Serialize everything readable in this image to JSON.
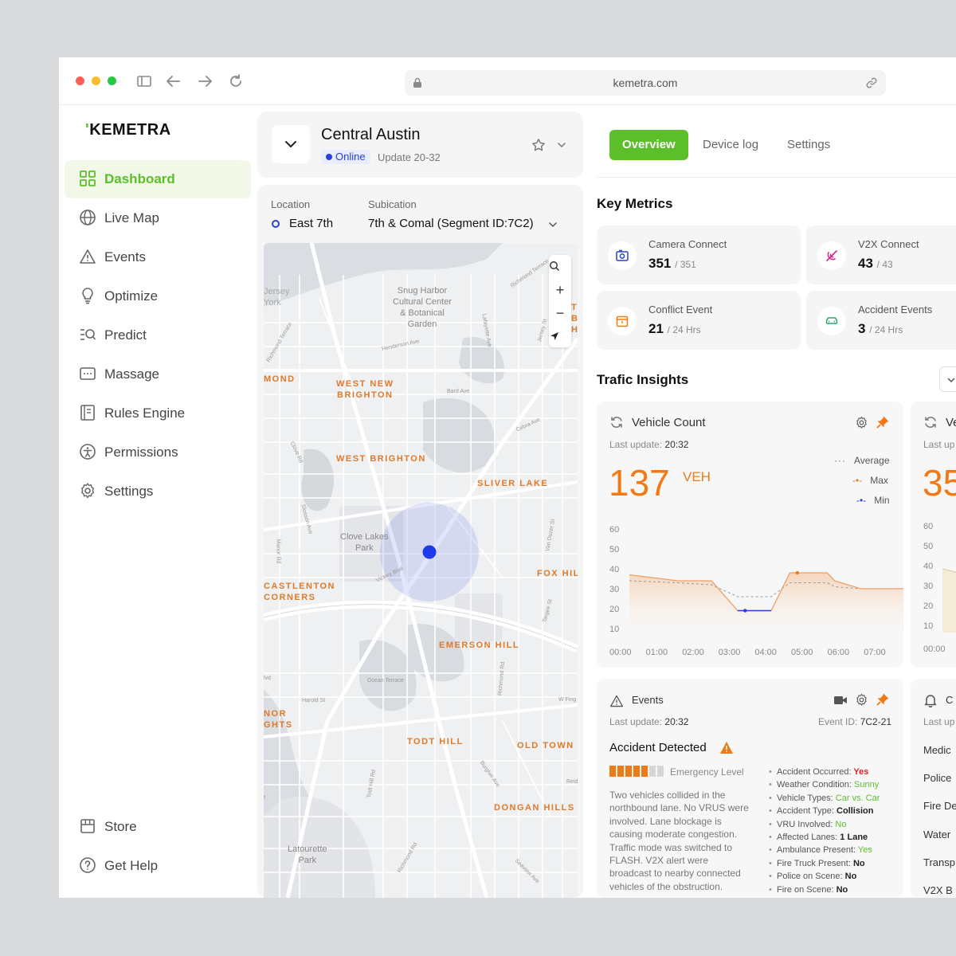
{
  "browser": {
    "url": "kemetra.com",
    "traffic_light_colors": [
      "#ff5f57",
      "#febc2e",
      "#28c840"
    ]
  },
  "brand": {
    "name": "KEMETRA",
    "accent_color": "#5cbf2a",
    "orange_color": "#f07a17"
  },
  "sidebar": {
    "items": [
      {
        "label": "Dashboard",
        "icon": "grid-icon",
        "active": true
      },
      {
        "label": "Live Map",
        "icon": "globe-icon"
      },
      {
        "label": "Events",
        "icon": "warning-icon"
      },
      {
        "label": "Optimize",
        "icon": "lightbulb-icon"
      },
      {
        "label": "Predict",
        "icon": "list-search-icon"
      },
      {
        "label": "Massage",
        "icon": "message-icon"
      },
      {
        "label": "Rules Engine",
        "icon": "document-icon"
      },
      {
        "label": "Permissions",
        "icon": "accessibility-icon"
      },
      {
        "label": "Settings",
        "icon": "gear-icon"
      }
    ],
    "bottom_items": [
      {
        "label": "Store",
        "icon": "store-icon"
      },
      {
        "label": "Get Help",
        "icon": "help-icon"
      }
    ]
  },
  "location_card": {
    "title": "Central Austin",
    "status": "Online",
    "update": "Update 20-32"
  },
  "location_panel": {
    "location_label": "Location",
    "location_value": "East 7th",
    "sublocation_label": "Subication",
    "sublocation_value": "7th & Comal (Segment ID:7C2)"
  },
  "map": {
    "labels_gray": [
      "Snug Harbor\nCultural Center\n& Botanical\nGarden",
      "Clove Lakes\nPark",
      "Latourette\nPark",
      "Jersey\nYork",
      "Richmond Terrace",
      "Henderson Ave",
      "Bard Ave",
      "Cebra Ave",
      "Clove Rd",
      "Slosson Ave",
      "Manor Rd",
      "Victory Blvd",
      "Van Duzer St",
      "Targee St",
      "Ocean Terrace",
      "Harold St",
      "Richmond Rd",
      "Burgher Ave",
      "Todt Hill Rd",
      "Seaview Ave",
      "Lafayette Ave",
      "Jersey St",
      "Richmond Terrace",
      "W Fing",
      "Reid",
      "Richmond Rd",
      "lvd",
      "t"
    ],
    "labels_orange": [
      "WEST NEW\nBRIGHTON",
      "WEST BRIGHTON",
      "SLIVER LAKE",
      "MOND",
      "CASTLENTON\nCORNERS",
      "FOX HIL",
      "EMERSON HILL",
      "NOR\nGHTS",
      "TODT HILL",
      "OLD TOWN",
      "DONGAN HILLS",
      "T\nBI\nH"
    ],
    "controls": [
      "+",
      "−"
    ]
  },
  "tabs": {
    "items": [
      "Overview",
      "Device log",
      "Settings"
    ],
    "active": "Overview"
  },
  "key_metrics": {
    "title": "Key Metrics",
    "items": [
      {
        "label": "Camera Connect",
        "value": "351",
        "unit": "/ 351",
        "icon": "camera-icon"
      },
      {
        "label": "V2X Connect",
        "value": "43",
        "unit": "/ 43",
        "icon": "antenna-icon"
      },
      {
        "label": "Conflict Event",
        "value": "21",
        "unit": "/ 24 Hrs",
        "icon": "calendar-alert-icon"
      },
      {
        "label": "Accident Events",
        "value": "3",
        "unit": "/ 24 Hrs",
        "icon": "car-icon"
      }
    ]
  },
  "traffic_insights": {
    "title": "Trafic Insights",
    "vehicle_count": {
      "title": "Vehicle Count",
      "last_update_label": "Last update:",
      "last_update": "20:32",
      "value": "137",
      "unit": "VEH",
      "legend": [
        "Average",
        "Max",
        "Min"
      ]
    },
    "second_card": {
      "title_partial": "Ve",
      "last_update_partial": "Last up",
      "value_partial": "35",
      "y_ticks": [
        "60",
        "50",
        "40",
        "30",
        "20",
        "10"
      ],
      "x_first": "00:00"
    }
  },
  "chart_data": {
    "type": "area",
    "title": "Vehicle Count",
    "x": [
      "00:00",
      "01:00",
      "02:00",
      "03:00",
      "04:00",
      "05:00",
      "06:00",
      "07:00"
    ],
    "y_ticks": [
      "60",
      "50",
      "40",
      "30",
      "20",
      "10"
    ],
    "ylim": [
      10,
      60
    ],
    "series": [
      {
        "name": "Max",
        "points": [
          [
            0,
            37
          ],
          [
            1.3,
            34
          ],
          [
            2.2,
            34
          ],
          [
            2.9,
            19
          ],
          [
            3.8,
            19
          ],
          [
            4.3,
            38
          ],
          [
            5.3,
            38
          ],
          [
            5.5,
            34
          ],
          [
            6.2,
            30
          ],
          [
            7.4,
            30
          ]
        ]
      },
      {
        "name": "Average",
        "points": [
          [
            0,
            34
          ],
          [
            1.3,
            33
          ],
          [
            2.2,
            32
          ],
          [
            2.9,
            26
          ],
          [
            3.8,
            26
          ],
          [
            4.3,
            33
          ],
          [
            5.3,
            33
          ],
          [
            5.5,
            31
          ],
          [
            6.2,
            30
          ],
          [
            7.4,
            30
          ]
        ]
      }
    ],
    "markers": [
      {
        "name": "Max",
        "x": 4.5,
        "y": 38
      },
      {
        "name": "Min",
        "x": 3.1,
        "y": 19
      }
    ]
  },
  "events_card": {
    "title": "Events",
    "last_update_label": "Last update:",
    "last_update": "20:32",
    "event_id_label": "Event ID:",
    "event_id": "7C2-21",
    "headline": "Accident Detected",
    "emergency_label": "Emergency Level",
    "emergency_level": 5,
    "emergency_max": 7,
    "description": "Two vehicles collided in the northbound lane. No VRUS were involved. Lane blockage is causing moderate congestion. Traffic mode was switched to FLASH. V2X alert were broadcast to nearby connected vehicles of the obstruction.",
    "details": [
      {
        "label": "Accident Occurred:",
        "value": "Yes",
        "style": "vr"
      },
      {
        "label": "Weather Condition:",
        "value": "Sunny",
        "style": "vg"
      },
      {
        "label": "Vehicle Types:",
        "value": "Car vs. Car",
        "style": "vg"
      },
      {
        "label": "Accident Type:",
        "value": "Collision",
        "style": "v"
      },
      {
        "label": "VRU Involved:",
        "value": "No",
        "style": "vg"
      },
      {
        "label": "Affected Lanes:",
        "value": "1 Lane",
        "style": "v"
      },
      {
        "label": "Ambulance Present:",
        "value": "Yes",
        "style": "vg"
      },
      {
        "label": "Fire Truck Present:",
        "value": "No",
        "style": "v"
      },
      {
        "label": "Police on Scene:",
        "value": "No",
        "style": "v"
      },
      {
        "label": "Fire on Scene:",
        "value": "No",
        "style": "v"
      }
    ]
  },
  "services_card": {
    "title_partial": "C",
    "last_update_partial": "Last up",
    "items": [
      "Medic",
      "Police",
      "Fire De",
      "Water",
      "Transp",
      "V2X B"
    ]
  }
}
